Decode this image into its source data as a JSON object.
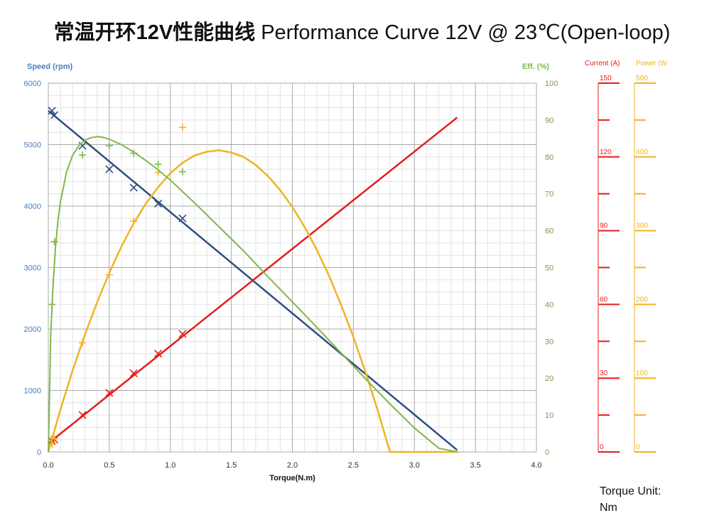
{
  "title": {
    "cn": "常温开环12V性能曲线",
    "en": "Performance Curve 12V @ 23℃(Open-loop)"
  },
  "unit_note": {
    "line1": "Torque Unit:",
    "line2": "Nm"
  },
  "chart_data": {
    "type": "line",
    "xlabel": "Torque(N.m)",
    "xlim": [
      0,
      4
    ],
    "x_ticks": [
      0,
      0.5,
      1,
      1.5,
      2,
      2.5,
      3,
      3.5,
      4
    ],
    "x_tick_labels": [
      "0.0",
      "0.5",
      "1.0",
      "1.5",
      "2.0",
      "2.5",
      "3.0",
      "3.5",
      "4.0"
    ],
    "grid": true,
    "axes": {
      "speed": {
        "label": "Speed (rpm)",
        "lim": [
          0,
          6000
        ],
        "ticks": [
          0,
          1000,
          2000,
          3000,
          4000,
          5000,
          6000
        ],
        "color": "#4a7ebb"
      },
      "efficiency": {
        "label": "Eff. (%)",
        "lim": [
          0,
          100
        ],
        "ticks": [
          0,
          10,
          20,
          30,
          40,
          50,
          60,
          70,
          80,
          90,
          100
        ],
        "color": "#7fb84a"
      },
      "current": {
        "label": "Current (A)",
        "lim": [
          0,
          150
        ],
        "ticks": [
          0,
          30,
          60,
          90,
          120,
          150
        ],
        "color": "#e41d1d"
      },
      "power": {
        "label": "Power (W",
        "lim": [
          0,
          500
        ],
        "ticks": [
          0,
          100,
          200,
          300,
          400,
          500
        ],
        "color": "#f0b323"
      }
    },
    "series": [
      {
        "axis": "speed",
        "color": "#2f4f7f",
        "x": [
          0.0,
          3.35
        ],
        "values": [
          5550,
          30
        ],
        "markers": {
          "symbol": "x",
          "x": [
            0.03,
            0.05,
            0.28,
            0.5,
            0.7,
            0.9,
            1.1
          ],
          "values": [
            5550,
            5480,
            4980,
            4600,
            4300,
            4040,
            3800
          ]
        }
      },
      {
        "axis": "current",
        "color": "#e41d1d",
        "x": [
          0.0,
          3.35
        ],
        "values": [
          3.5,
          136
        ],
        "markers": {
          "symbol": "x",
          "x": [
            0.03,
            0.05,
            0.28,
            0.5,
            0.7,
            0.9,
            1.1
          ],
          "values": [
            4.5,
            5,
            15,
            24,
            32,
            40,
            48
          ]
        }
      },
      {
        "axis": "power",
        "color": "#f0b323",
        "x": [
          0.0,
          0.1,
          0.2,
          0.3,
          0.4,
          0.5,
          0.6,
          0.7,
          0.8,
          0.9,
          1.0,
          1.1,
          1.2,
          1.3,
          1.4,
          1.5,
          1.6,
          1.7,
          1.8,
          1.9,
          2.0,
          2.1,
          2.2,
          2.3,
          2.4,
          2.5,
          2.6,
          2.7,
          2.8,
          2.9,
          3.0,
          3.1,
          3.2,
          3.3,
          3.36
        ],
        "values": [
          0,
          58,
          111,
          159,
          203,
          243,
          279,
          310,
          337,
          359,
          378,
          392,
          402,
          407,
          409,
          406,
          400,
          389,
          374,
          355,
          332,
          305,
          274,
          239,
          199,
          156,
          108,
          56,
          0,
          0,
          0,
          0,
          0,
          0,
          0
        ],
        "markers": {
          "symbol": "+",
          "x": [
            0.03,
            0.05,
            0.28,
            0.5,
            0.7,
            0.9,
            1.1
          ],
          "values": [
            10,
            18,
            148,
            240,
            313,
            379,
            440
          ]
        }
      },
      {
        "axis": "efficiency",
        "color": "#7fb84a",
        "x": [
          0.0,
          0.01,
          0.02,
          0.04,
          0.06,
          0.08,
          0.1,
          0.15,
          0.2,
          0.25,
          0.3,
          0.35,
          0.4,
          0.45,
          0.5,
          0.6,
          0.7,
          0.8,
          0.9,
          1.0,
          1.2,
          1.4,
          1.6,
          1.8,
          2.0,
          2.2,
          2.4,
          2.6,
          2.8,
          3.0,
          3.2,
          3.35
        ],
        "values": [
          0,
          15,
          32,
          46,
          56,
          63,
          68,
          76,
          80.5,
          83,
          84.5,
          85.2,
          85.5,
          85.3,
          84.8,
          83.3,
          81.3,
          79,
          76.5,
          73.7,
          67.5,
          61,
          54.5,
          47.5,
          40.7,
          33.8,
          26.8,
          19.8,
          13,
          6.5,
          1,
          0
        ],
        "markers": {
          "symbol": "+",
          "x": [
            0.03,
            0.05,
            0.28,
            0.5,
            0.7,
            0.9,
            1.1
          ],
          "values": [
            40,
            57,
            80.5,
            83,
            81,
            78,
            76
          ]
        }
      }
    ]
  }
}
